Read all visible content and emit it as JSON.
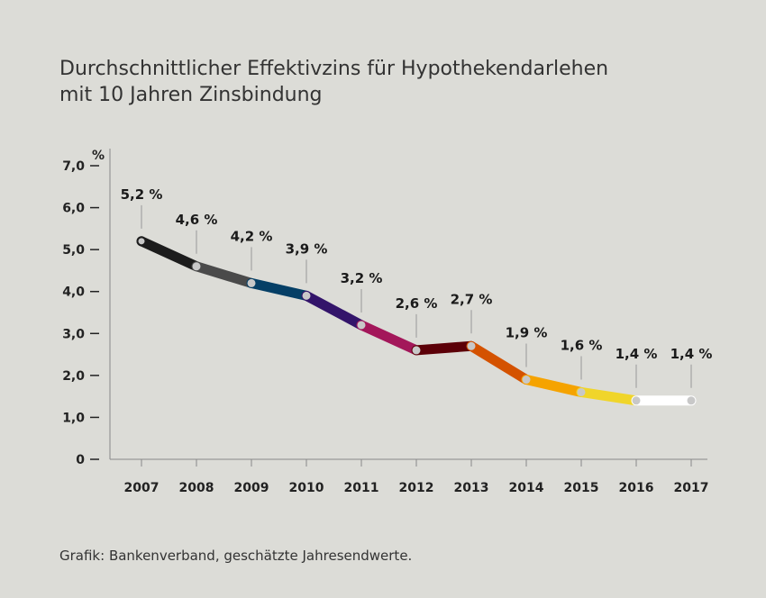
{
  "chart_data": {
    "type": "line",
    "title_lines": [
      "Durchschnittlicher Effektivzins für Hypothekendarlehen",
      "mit 10 Jahren Zinsbindung"
    ],
    "ylabel": "%",
    "ylim": [
      0,
      7
    ],
    "y_ticks": [
      "0",
      "1,0",
      "2,0",
      "3,0",
      "4,0",
      "5,0",
      "6,0",
      "7,0"
    ],
    "y_tick_values": [
      0,
      1,
      2,
      3,
      4,
      5,
      6,
      7
    ],
    "categories": [
      "2007",
      "2008",
      "2009",
      "2010",
      "2011",
      "2012",
      "2013",
      "2014",
      "2015",
      "2016",
      "2017"
    ],
    "values": [
      5.2,
      4.6,
      4.2,
      3.9,
      3.2,
      2.6,
      2.7,
      1.9,
      1.6,
      1.4,
      1.4
    ],
    "data_labels": [
      "5,2 %",
      "4,6 %",
      "4,2 %",
      "3,9 %",
      "3,2 %",
      "2,6 %",
      "2,7 %",
      "1,9 %",
      "1,6 %",
      "1,4 %",
      "1,4 %"
    ],
    "segment_colors": [
      "#1c1c1c",
      "#4a4a4a",
      "#053f66",
      "#33146a",
      "#a3175a",
      "#5c0008",
      "#d45200",
      "#f5a300",
      "#f0d52a",
      "#ffffff"
    ],
    "point_color": "#c8c8c8",
    "grid": false,
    "legend": "none"
  },
  "source": "Grafik: Bankenverband, geschätzte Jahresendwerte."
}
